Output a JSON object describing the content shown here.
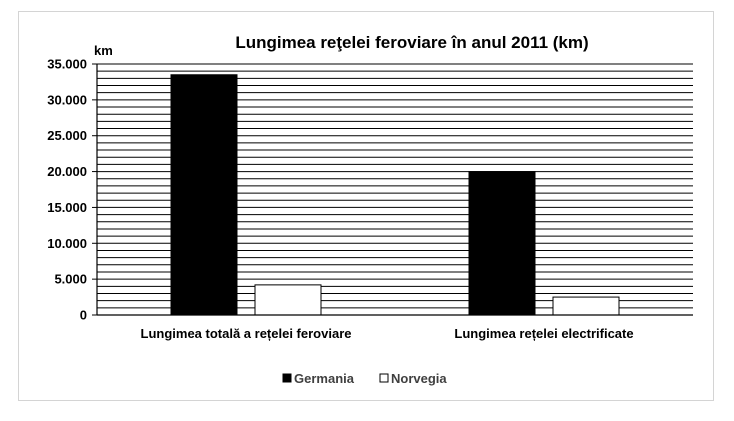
{
  "chart_data": {
    "type": "bar",
    "title": "Lungimea reţelei feroviare în anul 2011 (km)",
    "ylabel": "km",
    "categories": [
      "Lungimea totală a rețelei feroviare",
      "Lungimea rețelei electrificate"
    ],
    "series": [
      {
        "name": "Germania",
        "values": [
          33500,
          20000
        ],
        "color": "#000000"
      },
      {
        "name": "Norvegia",
        "values": [
          4200,
          2500
        ],
        "color": "#ffffff"
      }
    ],
    "ylim": [
      0,
      35000
    ],
    "yticks": [
      0,
      5000,
      10000,
      15000,
      20000,
      25000,
      30000,
      35000
    ],
    "ytick_labels": [
      "0",
      "5.000",
      "10.000",
      "15.000",
      "20.000",
      "25.000",
      "30.000",
      "35.000"
    ],
    "minor_grid_step": 1000,
    "grid": true,
    "legend_position": "bottom"
  }
}
